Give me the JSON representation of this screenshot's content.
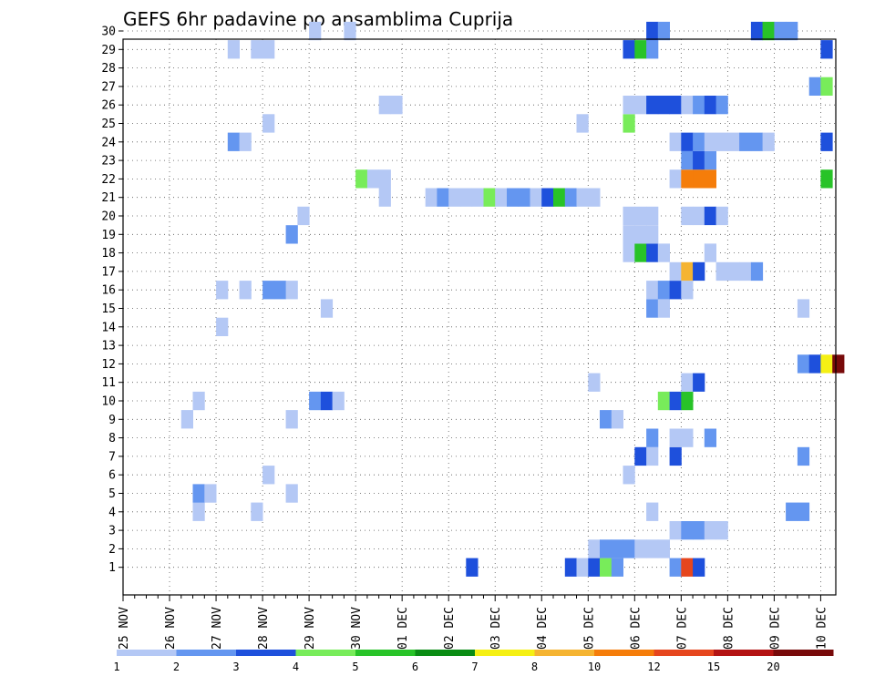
{
  "chart_data": {
    "type": "heatmap",
    "title": "GEFS 6hr padavine po ansamblima Cuprija",
    "x_ticks": [
      "25 NOV",
      "26 NOV",
      "27 NOV",
      "28 NOV",
      "29 NOV",
      "30 NOV",
      "01 DEC",
      "02 DEC",
      "03 DEC",
      "04 DEC",
      "05 DEC",
      "06 DEC",
      "07 DEC",
      "08 DEC",
      "09 DEC",
      "10 DEC"
    ],
    "y_ticks": [
      "1",
      "2",
      "3",
      "4",
      "5",
      "6",
      "7",
      "8",
      "9",
      "10",
      "11",
      "12",
      "13",
      "14",
      "15",
      "16",
      "17",
      "18",
      "19",
      "20",
      "21",
      "22",
      "23",
      "24",
      "25",
      "26",
      "27",
      "28",
      "29",
      "30"
    ],
    "xlim": [
      0,
      60
    ],
    "ylim": [
      0,
      30
    ],
    "grid": true,
    "time_step": "6hr",
    "colorbar": {
      "labels": [
        "1",
        "2",
        "3",
        "4",
        "5",
        "6",
        "7",
        "8",
        "10",
        "12",
        "15",
        "20"
      ],
      "colors": [
        "#b4c8f5",
        "#6496f0",
        "#1e50dc",
        "#78ec5a",
        "#28c328",
        "#0a8c14",
        "#f5f014",
        "#f5b432",
        "#f57d0a",
        "#e6461e",
        "#b41414",
        "#780a0a"
      ]
    },
    "cells": [
      {
        "t": 29.5,
        "m": 1,
        "c": 3
      },
      {
        "t": 38,
        "m": 1,
        "c": 3
      },
      {
        "t": 39,
        "m": 1,
        "c": 1
      },
      {
        "t": 40,
        "m": 1,
        "c": 3
      },
      {
        "t": 41,
        "m": 1,
        "c": 4
      },
      {
        "t": 42,
        "m": 1,
        "c": 2
      },
      {
        "t": 47,
        "m": 1,
        "c": 2
      },
      {
        "t": 48,
        "m": 1,
        "c": 10
      },
      {
        "t": 49,
        "m": 1,
        "c": 3
      },
      {
        "t": 40,
        "m": 2,
        "c": 1
      },
      {
        "t": 41,
        "m": 2,
        "c": 2
      },
      {
        "t": 42,
        "m": 2,
        "c": 2
      },
      {
        "t": 43,
        "m": 2,
        "c": 2
      },
      {
        "t": 44,
        "m": 2,
        "c": 1
      },
      {
        "t": 45,
        "m": 2,
        "c": 1
      },
      {
        "t": 46,
        "m": 2,
        "c": 1
      },
      {
        "t": 47,
        "m": 3,
        "c": 1
      },
      {
        "t": 48,
        "m": 3,
        "c": 2
      },
      {
        "t": 49,
        "m": 3,
        "c": 2
      },
      {
        "t": 50,
        "m": 3,
        "c": 1
      },
      {
        "t": 51,
        "m": 3,
        "c": 1
      },
      {
        "t": 6,
        "m": 4,
        "c": 1
      },
      {
        "t": 11,
        "m": 4,
        "c": 1
      },
      {
        "t": 45,
        "m": 4,
        "c": 1
      },
      {
        "t": 57,
        "m": 4,
        "c": 2
      },
      {
        "t": 58,
        "m": 4,
        "c": 2
      },
      {
        "t": 6,
        "m": 5,
        "c": 2
      },
      {
        "t": 7,
        "m": 5,
        "c": 1
      },
      {
        "t": 14,
        "m": 5,
        "c": 1
      },
      {
        "t": 12,
        "m": 6,
        "c": 1
      },
      {
        "t": 43,
        "m": 6,
        "c": 1
      },
      {
        "t": 44,
        "m": 7,
        "c": 3
      },
      {
        "t": 45,
        "m": 7,
        "c": 1
      },
      {
        "t": 47,
        "m": 7,
        "c": 3
      },
      {
        "t": 58,
        "m": 7,
        "c": 2
      },
      {
        "t": 45,
        "m": 8,
        "c": 2
      },
      {
        "t": 47,
        "m": 8,
        "c": 1
      },
      {
        "t": 48,
        "m": 8,
        "c": 1
      },
      {
        "t": 50,
        "m": 8,
        "c": 2
      },
      {
        "t": 5,
        "m": 9,
        "c": 1
      },
      {
        "t": 14,
        "m": 9,
        "c": 1
      },
      {
        "t": 41,
        "m": 9,
        "c": 2
      },
      {
        "t": 42,
        "m": 9,
        "c": 1
      },
      {
        "t": 6,
        "m": 10,
        "c": 1
      },
      {
        "t": 16,
        "m": 10,
        "c": 2
      },
      {
        "t": 17,
        "m": 10,
        "c": 3
      },
      {
        "t": 18,
        "m": 10,
        "c": 1
      },
      {
        "t": 46,
        "m": 10,
        "c": 4
      },
      {
        "t": 47,
        "m": 10,
        "c": 3
      },
      {
        "t": 48,
        "m": 10,
        "c": 5
      },
      {
        "t": 40,
        "m": 11,
        "c": 1
      },
      {
        "t": 48,
        "m": 11,
        "c": 1
      },
      {
        "t": 49,
        "m": 11,
        "c": 3
      },
      {
        "t": 58,
        "m": 12,
        "c": 2
      },
      {
        "t": 59,
        "m": 12,
        "c": 3
      },
      {
        "t": 60,
        "m": 12,
        "c": 7
      },
      {
        "t": 61,
        "m": 12,
        "c": 12
      },
      {
        "t": 8,
        "m": 14,
        "c": 1
      },
      {
        "t": 17,
        "m": 15,
        "c": 1
      },
      {
        "t": 45,
        "m": 15,
        "c": 2
      },
      {
        "t": 46,
        "m": 15,
        "c": 1
      },
      {
        "t": 58,
        "m": 15,
        "c": 1
      },
      {
        "t": 8,
        "m": 16,
        "c": 1
      },
      {
        "t": 10,
        "m": 16,
        "c": 1
      },
      {
        "t": 12,
        "m": 16,
        "c": 2
      },
      {
        "t": 13,
        "m": 16,
        "c": 2
      },
      {
        "t": 14,
        "m": 16,
        "c": 1
      },
      {
        "t": 45,
        "m": 16,
        "c": 1
      },
      {
        "t": 46,
        "m": 16,
        "c": 2
      },
      {
        "t": 47,
        "m": 16,
        "c": 3
      },
      {
        "t": 48,
        "m": 16,
        "c": 1
      },
      {
        "t": 47,
        "m": 17,
        "c": 1
      },
      {
        "t": 48,
        "m": 17,
        "c": 8
      },
      {
        "t": 49,
        "m": 17,
        "c": 3
      },
      {
        "t": 51,
        "m": 17,
        "c": 1
      },
      {
        "t": 52,
        "m": 17,
        "c": 1
      },
      {
        "t": 53,
        "m": 17,
        "c": 1
      },
      {
        "t": 54,
        "m": 17,
        "c": 2
      },
      {
        "t": 43,
        "m": 18,
        "c": 1
      },
      {
        "t": 44,
        "m": 18,
        "c": 5
      },
      {
        "t": 45,
        "m": 18,
        "c": 3
      },
      {
        "t": 46,
        "m": 18,
        "c": 1
      },
      {
        "t": 50,
        "m": 18,
        "c": 1
      },
      {
        "t": 14,
        "m": 19,
        "c": 2
      },
      {
        "t": 43,
        "m": 19,
        "c": 1
      },
      {
        "t": 44,
        "m": 19,
        "c": 1
      },
      {
        "t": 45,
        "m": 19,
        "c": 1
      },
      {
        "t": 15,
        "m": 20,
        "c": 1
      },
      {
        "t": 43,
        "m": 20,
        "c": 1
      },
      {
        "t": 44,
        "m": 20,
        "c": 1
      },
      {
        "t": 45,
        "m": 20,
        "c": 1
      },
      {
        "t": 48,
        "m": 20,
        "c": 1
      },
      {
        "t": 49,
        "m": 20,
        "c": 1
      },
      {
        "t": 50,
        "m": 20,
        "c": 3
      },
      {
        "t": 51,
        "m": 20,
        "c": 1
      },
      {
        "t": 22,
        "m": 21,
        "c": 1
      },
      {
        "t": 26,
        "m": 21,
        "c": 1
      },
      {
        "t": 27,
        "m": 21,
        "c": 2
      },
      {
        "t": 28,
        "m": 21,
        "c": 1
      },
      {
        "t": 29,
        "m": 21,
        "c": 1
      },
      {
        "t": 30,
        "m": 21,
        "c": 1
      },
      {
        "t": 31,
        "m": 21,
        "c": 4
      },
      {
        "t": 32,
        "m": 21,
        "c": 1
      },
      {
        "t": 33,
        "m": 21,
        "c": 2
      },
      {
        "t": 34,
        "m": 21,
        "c": 2
      },
      {
        "t": 35,
        "m": 21,
        "c": 1
      },
      {
        "t": 36,
        "m": 21,
        "c": 3
      },
      {
        "t": 37,
        "m": 21,
        "c": 5
      },
      {
        "t": 38,
        "m": 21,
        "c": 2
      },
      {
        "t": 39,
        "m": 21,
        "c": 1
      },
      {
        "t": 40,
        "m": 21,
        "c": 1
      },
      {
        "t": 20,
        "m": 22,
        "c": 4
      },
      {
        "t": 21,
        "m": 22,
        "c": 1
      },
      {
        "t": 22,
        "m": 22,
        "c": 1
      },
      {
        "t": 47,
        "m": 22,
        "c": 1
      },
      {
        "t": 48,
        "m": 22,
        "c": 9
      },
      {
        "t": 49,
        "m": 22,
        "c": 9
      },
      {
        "t": 50,
        "m": 22,
        "c": 9
      },
      {
        "t": 60,
        "m": 22,
        "c": 5
      },
      {
        "t": 48,
        "m": 23,
        "c": 2
      },
      {
        "t": 49,
        "m": 23,
        "c": 3
      },
      {
        "t": 50,
        "m": 23,
        "c": 2
      },
      {
        "t": 9,
        "m": 24,
        "c": 2
      },
      {
        "t": 10,
        "m": 24,
        "c": 1
      },
      {
        "t": 47,
        "m": 24,
        "c": 1
      },
      {
        "t": 48,
        "m": 24,
        "c": 3
      },
      {
        "t": 49,
        "m": 24,
        "c": 2
      },
      {
        "t": 50,
        "m": 24,
        "c": 1
      },
      {
        "t": 51,
        "m": 24,
        "c": 1
      },
      {
        "t": 52,
        "m": 24,
        "c": 1
      },
      {
        "t": 53,
        "m": 24,
        "c": 2
      },
      {
        "t": 54,
        "m": 24,
        "c": 2
      },
      {
        "t": 55,
        "m": 24,
        "c": 1
      },
      {
        "t": 60,
        "m": 24,
        "c": 3
      },
      {
        "t": 12,
        "m": 25,
        "c": 1
      },
      {
        "t": 39,
        "m": 25,
        "c": 1
      },
      {
        "t": 43,
        "m": 25,
        "c": 4
      },
      {
        "t": 22,
        "m": 26,
        "c": 1
      },
      {
        "t": 23,
        "m": 26,
        "c": 1
      },
      {
        "t": 43,
        "m": 26,
        "c": 1
      },
      {
        "t": 44,
        "m": 26,
        "c": 1
      },
      {
        "t": 45,
        "m": 26,
        "c": 3
      },
      {
        "t": 46,
        "m": 26,
        "c": 3
      },
      {
        "t": 47,
        "m": 26,
        "c": 3
      },
      {
        "t": 48,
        "m": 26,
        "c": 1
      },
      {
        "t": 49,
        "m": 26,
        "c": 2
      },
      {
        "t": 50,
        "m": 26,
        "c": 3
      },
      {
        "t": 51,
        "m": 26,
        "c": 2
      },
      {
        "t": 59,
        "m": 27,
        "c": 2
      },
      {
        "t": 60,
        "m": 27,
        "c": 4
      },
      {
        "t": 9,
        "m": 29,
        "c": 1
      },
      {
        "t": 11,
        "m": 29,
        "c": 1
      },
      {
        "t": 12,
        "m": 29,
        "c": 1
      },
      {
        "t": 43,
        "m": 29,
        "c": 3
      },
      {
        "t": 44,
        "m": 29,
        "c": 5
      },
      {
        "t": 45,
        "m": 29,
        "c": 2
      },
      {
        "t": 60,
        "m": 29,
        "c": 3
      },
      {
        "t": 16,
        "m": 30,
        "c": 1
      },
      {
        "t": 19,
        "m": 30,
        "c": 1
      },
      {
        "t": 45,
        "m": 30,
        "c": 3
      },
      {
        "t": 46,
        "m": 30,
        "c": 2
      },
      {
        "t": 54,
        "m": 30,
        "c": 3
      },
      {
        "t": 55,
        "m": 30,
        "c": 5
      },
      {
        "t": 56,
        "m": 30,
        "c": 2
      },
      {
        "t": 57,
        "m": 30,
        "c": 2
      }
    ]
  }
}
